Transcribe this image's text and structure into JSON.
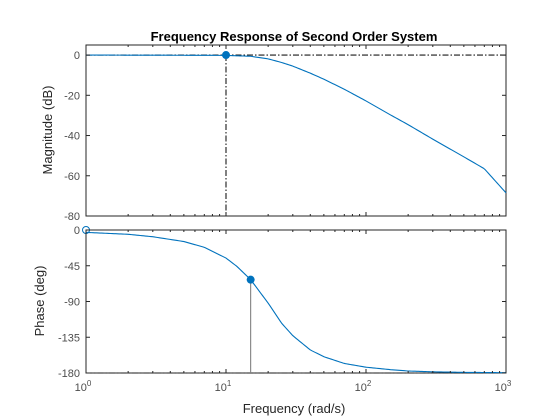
{
  "chart_data": {
    "type": "line",
    "title": "Frequency Response of Second Order System",
    "xlabel": "Frequency  (rad/s)",
    "x_scale": "log",
    "xlim": [
      1,
      1000
    ],
    "x_ticks": [
      {
        "value": 1,
        "base": "10",
        "exp": "0"
      },
      {
        "value": 10,
        "base": "10",
        "exp": "1"
      },
      {
        "value": 100,
        "base": "10",
        "exp": "2"
      },
      {
        "value": 1000,
        "base": "10",
        "exp": "3"
      }
    ],
    "line_color": "#0072bd",
    "marker_color": "#0072bd",
    "ref_line_color": "#1a1a1a",
    "stem_color": "#808080",
    "magnitude": {
      "ylabel": "Magnitude (dB)",
      "ylim": [
        -80,
        5
      ],
      "y_ticks": [
        0,
        -20,
        -40,
        -60,
        -80
      ],
      "x": [
        1,
        5,
        10,
        15,
        20,
        25,
        30,
        40,
        50,
        70,
        100,
        150,
        200,
        300,
        500,
        700,
        1000
      ],
      "y": [
        0,
        -0.1,
        -0.17,
        -0.6,
        -1.9,
        -3.7,
        -5.5,
        -9.0,
        -12.0,
        -17.0,
        -22.8,
        -29.8,
        -34.6,
        -41.8,
        -50.6,
        -56.5,
        -68.5
      ],
      "marker": {
        "x": 10,
        "y": 0
      },
      "dashed_ref_y": 0,
      "vertical_ref_x": 10
    },
    "phase": {
      "ylabel": "Phase (deg)",
      "ylim": [
        -180,
        0
      ],
      "y_ticks": [
        0,
        -45,
        -90,
        -135,
        -180
      ],
      "x": [
        1,
        2,
        3,
        5,
        7,
        10,
        12,
        15,
        20,
        25,
        30,
        40,
        50,
        70,
        100,
        150,
        200,
        300,
        500,
        1000
      ],
      "y": [
        -3,
        -5.4,
        -8.5,
        -14.5,
        -21.8,
        -35.3,
        -46,
        -62.5,
        -92,
        -117.5,
        -133,
        -151,
        -159.5,
        -168,
        -172.7,
        -175.8,
        -177.5,
        -178.5,
        -179.2,
        -179.6
      ],
      "marker": {
        "x": 15,
        "y": -62.5
      },
      "start_marker": {
        "x": 1,
        "y": 0
      },
      "dashed_ref_y": -180
    }
  }
}
